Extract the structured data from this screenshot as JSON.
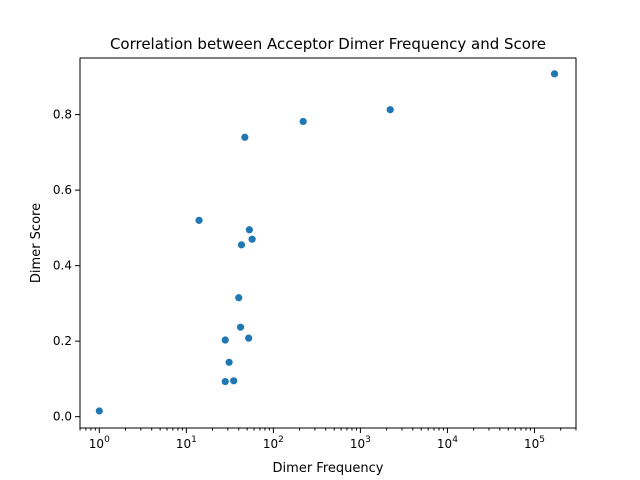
{
  "chart_data": {
    "type": "scatter",
    "title": "Correlation between Acceptor Dimer Frequency and Score",
    "xlabel": "Dimer Frequency",
    "ylabel": "Dimer Score",
    "xscale": "log",
    "xlim": [
      0.6,
      300000
    ],
    "ylim": [
      -0.03,
      0.95
    ],
    "x_ticks": [
      {
        "base": "10",
        "exp": "0",
        "value": 1
      },
      {
        "base": "10",
        "exp": "1",
        "value": 10
      },
      {
        "base": "10",
        "exp": "2",
        "value": 100
      },
      {
        "base": "10",
        "exp": "3",
        "value": 1000
      },
      {
        "base": "10",
        "exp": "4",
        "value": 10000
      },
      {
        "base": "10",
        "exp": "5",
        "value": 100000
      }
    ],
    "y_ticks": [
      "0.0",
      "0.2",
      "0.4",
      "0.6",
      "0.8"
    ],
    "grid": false,
    "marker_color": "#1f77b4",
    "points": [
      {
        "x": 1,
        "y": 0.015
      },
      {
        "x": 14,
        "y": 0.52
      },
      {
        "x": 28,
        "y": 0.093
      },
      {
        "x": 28,
        "y": 0.203
      },
      {
        "x": 31,
        "y": 0.144
      },
      {
        "x": 35,
        "y": 0.095
      },
      {
        "x": 40,
        "y": 0.315
      },
      {
        "x": 42,
        "y": 0.237
      },
      {
        "x": 43,
        "y": 0.455
      },
      {
        "x": 47,
        "y": 0.74
      },
      {
        "x": 52,
        "y": 0.208
      },
      {
        "x": 53,
        "y": 0.495
      },
      {
        "x": 57,
        "y": 0.47
      },
      {
        "x": 220,
        "y": 0.782
      },
      {
        "x": 2200,
        "y": 0.813
      },
      {
        "x": 170000,
        "y": 0.908
      }
    ]
  }
}
